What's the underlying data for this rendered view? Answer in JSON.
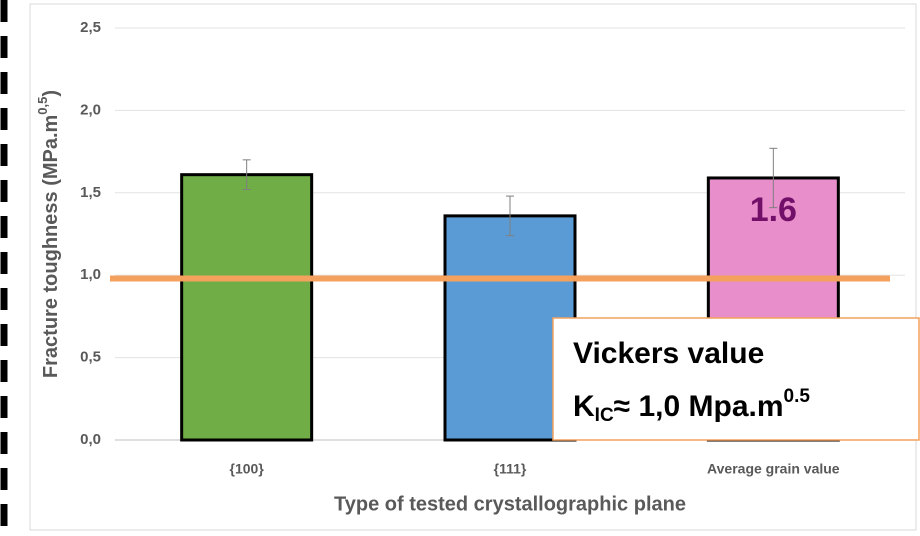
{
  "chart_data": {
    "type": "bar",
    "x_label": "Type of tested crystallographic plane",
    "y_label": {
      "text": "Fracture toughness (MPa.m",
      "sup": "0,5",
      "end": ")"
    },
    "categories": [
      "{100}",
      "{111}",
      "Average grain value"
    ],
    "values": [
      1.61,
      1.36,
      1.59
    ],
    "errors": [
      0.09,
      0.12,
      0.18
    ],
    "value_labels": [
      null,
      null,
      "1.6"
    ],
    "colors": [
      "#70ad47",
      "#5b9bd5",
      "#e78ecb"
    ],
    "ylim": [
      0,
      2.5
    ],
    "yticks": [
      {
        "value": 0,
        "label": "0,0"
      },
      {
        "value": 0.5,
        "label": "0,5"
      },
      {
        "value": 1,
        "label": "1,0"
      },
      {
        "value": 1.5,
        "label": "1,5"
      },
      {
        "value": 2,
        "label": "2,0"
      },
      {
        "value": 2.5,
        "label": "2,5"
      }
    ],
    "grid": true,
    "reference_line": {
      "value": 0.98,
      "color": "#f4a15d"
    },
    "annotation": {
      "line1": "Vickers value",
      "k": "K",
      "sub": "IC",
      "rest": "≈ 1,0 Mpa.m",
      "sup": "0.5"
    }
  }
}
